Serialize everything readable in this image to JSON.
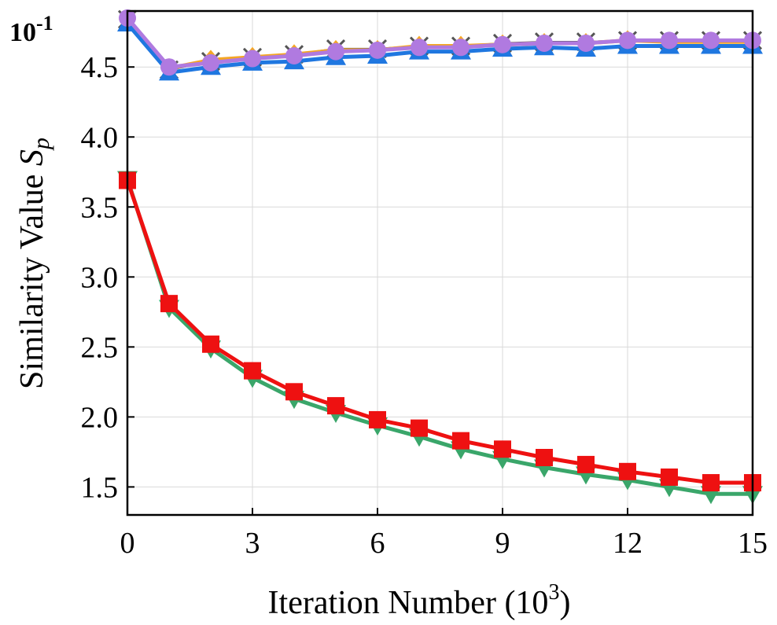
{
  "chart_data": {
    "type": "line",
    "xlabel_prefix": "Iteration Number (10",
    "xlabel_sup": "3",
    "xlabel_suffix": ")",
    "ylabel_prefix": "Similarity Value ",
    "ylabel_symbol": "S",
    "ylabel_subscript": "p",
    "y_multiplier_base": "10",
    "y_multiplier_exp": "-1",
    "xlim": [
      0,
      15
    ],
    "ylim": [
      1.3,
      4.9
    ],
    "xticks": [
      0,
      3,
      6,
      9,
      12,
      15
    ],
    "xtick_labels": [
      "0",
      "3",
      "6",
      "9",
      "12",
      "15"
    ],
    "yticks": [
      1.5,
      2.0,
      2.5,
      3.0,
      3.5,
      4.0,
      4.5
    ],
    "ytick_labels": [
      "1.5",
      "2.0",
      "2.5",
      "3.0",
      "3.5",
      "4.0",
      "4.5"
    ],
    "grid": true,
    "x": [
      0,
      1,
      2,
      3,
      4,
      5,
      6,
      7,
      8,
      9,
      10,
      11,
      12,
      13,
      14,
      15
    ],
    "series": [
      {
        "color": "#555555",
        "marker": "x",
        "values": [
          4.84,
          4.48,
          4.54,
          4.57,
          4.59,
          4.63,
          4.63,
          4.65,
          4.65,
          4.67,
          4.68,
          4.68,
          4.69,
          4.69,
          4.69,
          4.69
        ]
      },
      {
        "color": "#f5a623",
        "marker": "diamond",
        "values": [
          4.84,
          4.49,
          4.55,
          4.57,
          4.59,
          4.62,
          4.62,
          4.65,
          4.65,
          4.66,
          4.67,
          4.67,
          4.69,
          4.68,
          4.68,
          4.68
        ]
      },
      {
        "color": "#1f77e0",
        "marker": "triangle-up",
        "values": [
          4.81,
          4.46,
          4.5,
          4.53,
          4.54,
          4.57,
          4.58,
          4.61,
          4.61,
          4.63,
          4.64,
          4.63,
          4.65,
          4.65,
          4.65,
          4.65
        ]
      },
      {
        "color": "#b07ae0",
        "marker": "circle",
        "values": [
          4.85,
          4.5,
          4.53,
          4.56,
          4.58,
          4.61,
          4.62,
          4.64,
          4.64,
          4.66,
          4.67,
          4.67,
          4.69,
          4.69,
          4.69,
          4.69
        ]
      },
      {
        "color": "#3aa66a",
        "marker": "triangle-down",
        "values": [
          3.7,
          2.78,
          2.49,
          2.28,
          2.13,
          2.03,
          1.94,
          1.86,
          1.77,
          1.7,
          1.64,
          1.59,
          1.55,
          1.5,
          1.45,
          1.45
        ]
      },
      {
        "color": "#ee1111",
        "marker": "square",
        "values": [
          3.69,
          2.81,
          2.52,
          2.33,
          2.18,
          2.08,
          1.98,
          1.92,
          1.83,
          1.77,
          1.71,
          1.66,
          1.61,
          1.57,
          1.53,
          1.53
        ]
      }
    ]
  }
}
